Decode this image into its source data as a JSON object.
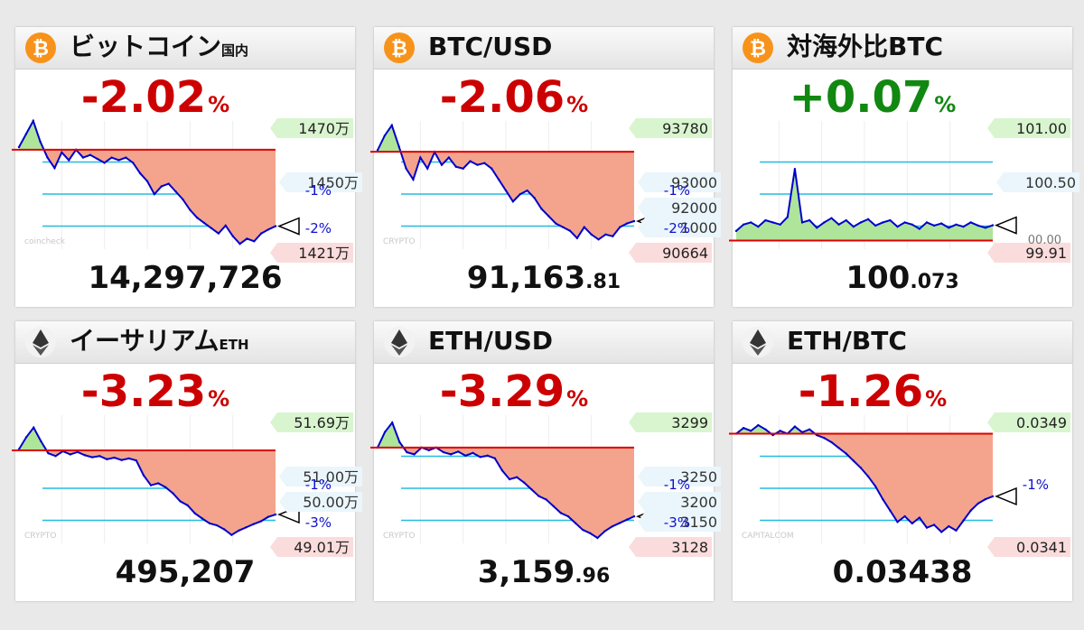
{
  "colors": {
    "neg": "#cc0000",
    "pos": "#118811",
    "line": "#0000cc",
    "base": "#dd0000",
    "fill_down": "#f4a48c",
    "fill_up": "#aee59a",
    "guide": "#23bde0",
    "tag_green": "#d9f5cf",
    "tag_red": "#fbdcdc",
    "tag_blue": "#eaf6fb"
  },
  "cards": [
    {
      "title": "ビットコイン",
      "title_sub": "国内",
      "icon": "bitcoin-icon",
      "pct": "-2.02",
      "pct_sign": "neg",
      "pct_unit": "%",
      "price_int": "14,297,726",
      "price_dec": "",
      "watermark": "coincheck",
      "hi_label": "1470万",
      "lo_label": "1421万",
      "mid_label": "1450万",
      "minus_labels": [
        "-1%",
        "-2%"
      ]
    },
    {
      "title": "BTC/USD",
      "title_sub": "",
      "icon": "bitcoin-icon",
      "pct": "-2.06",
      "pct_sign": "neg",
      "pct_unit": "%",
      "price_int": "91,163",
      "price_dec": ".81",
      "watermark": "CRYPTO",
      "hi_label": "93780",
      "lo_label": "90664",
      "mid_label": "93000",
      "mid2_label": "92000",
      "mid3_label": "1000",
      "minus_labels": [
        "-1%",
        "-2%"
      ]
    },
    {
      "title": "対海外比BTC",
      "title_sub": "",
      "icon": "bitcoin-icon",
      "pct": "+0.07",
      "pct_sign": "pos",
      "pct_unit": "%",
      "price_int": "100",
      "price_dec": ".073",
      "watermark": "",
      "hi_label": "101.00",
      "mid_label": "100.50",
      "lo_label": "99.91",
      "lo2_label": "00.00"
    },
    {
      "title": "イーサリアム",
      "title_sub": "ETH",
      "icon": "ethereum-icon",
      "pct": "-3.23",
      "pct_sign": "neg",
      "pct_unit": "%",
      "price_int": "495,207",
      "price_dec": "",
      "watermark": "CRYPTO",
      "hi_label": "51.69万",
      "lo_label": "49.01万",
      "mid_label": "51.00万",
      "mid2_label": "50.00万",
      "minus_labels": [
        "-1%",
        "-3%"
      ]
    },
    {
      "title": "ETH/USD",
      "title_sub": "",
      "icon": "ethereum-icon",
      "pct": "-3.29",
      "pct_sign": "neg",
      "pct_unit": "%",
      "price_int": "3,159",
      "price_dec": ".96",
      "watermark": "CRYPTO",
      "hi_label": "3299",
      "lo_label": "3128",
      "mid_label": "3250",
      "mid2_label": "3200",
      "mid3_label": "3150",
      "minus_labels": [
        "-1%",
        "-3%"
      ]
    },
    {
      "title": "ETH/BTC",
      "title_sub": "",
      "icon": "ethereum-icon",
      "pct": "-1.26",
      "pct_sign": "neg",
      "pct_unit": "%",
      "price_int": "0.03438",
      "price_dec": "",
      "watermark": "CAPITALCOM",
      "hi_label": "0.0349",
      "lo_label": "0.0341",
      "minus_labels": [
        "-1%"
      ]
    }
  ],
  "chart_data": [
    {
      "type": "line",
      "title": "ビットコイン国内",
      "ylim": [
        14210000,
        14700000
      ],
      "baseline": 14590000,
      "y": [
        14600000,
        14650000,
        14700000,
        14620000,
        14560000,
        14520000,
        14580000,
        14550000,
        14590000,
        14560000,
        14570000,
        14555000,
        14540000,
        14560000,
        14550000,
        14560000,
        14540000,
        14500000,
        14470000,
        14420000,
        14450000,
        14460000,
        14430000,
        14400000,
        14360000,
        14330000,
        14310000,
        14290000,
        14270000,
        14300000,
        14260000,
        14230000,
        14250000,
        14240000,
        14270000,
        14285000,
        14297726
      ]
    },
    {
      "type": "line",
      "title": "BTC/USD",
      "ylim": [
        90400,
        93900
      ],
      "baseline": 93060,
      "y": [
        93100,
        93500,
        93780,
        93200,
        92600,
        92300,
        92900,
        92600,
        93050,
        92700,
        92900,
        92650,
        92600,
        92800,
        92700,
        92750,
        92600,
        92300,
        92000,
        91700,
        91900,
        92000,
        91800,
        91500,
        91300,
        91100,
        91000,
        90900,
        90700,
        91000,
        90800,
        90664,
        90800,
        90750,
        91000,
        91100,
        91163.81
      ]
    },
    {
      "type": "line",
      "title": "対海外比BTC",
      "ylim": [
        99.85,
        101.05
      ],
      "baseline": 99.93,
      "y": [
        100.02,
        100.08,
        100.1,
        100.06,
        100.12,
        100.1,
        100.08,
        100.15,
        100.6,
        100.1,
        100.12,
        100.05,
        100.1,
        100.14,
        100.08,
        100.12,
        100.06,
        100.1,
        100.13,
        100.07,
        100.1,
        100.12,
        100.06,
        100.1,
        100.08,
        100.04,
        100.1,
        100.07,
        100.09,
        100.05,
        100.08,
        100.06,
        100.1,
        100.07,
        100.05,
        100.073
      ]
    },
    {
      "type": "line",
      "title": "イーサリアムETH",
      "ylim": [
        488000,
        520000
      ],
      "baseline": 511200,
      "y": [
        511500,
        514500,
        516900,
        513500,
        510500,
        509800,
        511000,
        510200,
        510800,
        510000,
        509500,
        509800,
        509000,
        509400,
        508800,
        509200,
        508700,
        505000,
        502500,
        503000,
        502000,
        500500,
        498500,
        497500,
        495500,
        494200,
        493000,
        492500,
        491500,
        490100,
        491200,
        492000,
        492800,
        493500,
        494600,
        495207
      ]
    },
    {
      "type": "line",
      "title": "ETH/USD",
      "ylim": [
        3120,
        3310
      ],
      "baseline": 3262,
      "y": [
        3262,
        3285,
        3299,
        3270,
        3255,
        3252,
        3262,
        3258,
        3262,
        3255,
        3252,
        3256,
        3250,
        3254,
        3248,
        3250,
        3246,
        3228,
        3215,
        3218,
        3210,
        3200,
        3190,
        3185,
        3175,
        3165,
        3160,
        3150,
        3140,
        3135,
        3128,
        3138,
        3145,
        3150,
        3155,
        3159.96
      ]
    },
    {
      "type": "line",
      "title": "ETH/BTC",
      "ylim": [
        0.03405,
        0.03495
      ],
      "baseline": 0.03482,
      "y": [
        0.03482,
        0.03486,
        0.03484,
        0.03488,
        0.03485,
        0.03481,
        0.03484,
        0.03482,
        0.03487,
        0.03483,
        0.03485,
        0.03481,
        0.03479,
        0.03476,
        0.03472,
        0.03468,
        0.03463,
        0.03458,
        0.03452,
        0.03445,
        0.03436,
        0.03428,
        0.0342,
        0.03424,
        0.03419,
        0.03423,
        0.03416,
        0.03418,
        0.03413,
        0.03417,
        0.03414,
        0.03421,
        0.03428,
        0.03433,
        0.03436,
        0.03438
      ]
    }
  ]
}
